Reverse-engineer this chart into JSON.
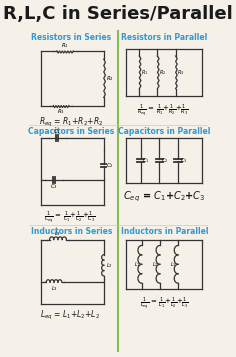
{
  "title": "R,L,C in Series/Parallel",
  "title_fontsize": 13,
  "title_color": "#1a1a1a",
  "subtitle_color": "#3399cc",
  "formula_color": "#1a1a1a",
  "bg_color": "#f5f0e8",
  "divider_color": "#88bb55",
  "line_color": "#333333",
  "sections": [
    "Resistors in Series",
    "Resistors in Parallel",
    "Capacitors in Series",
    "Capacitors in Parallel",
    "Inductors in Series",
    "Inductors in Parallel"
  ]
}
